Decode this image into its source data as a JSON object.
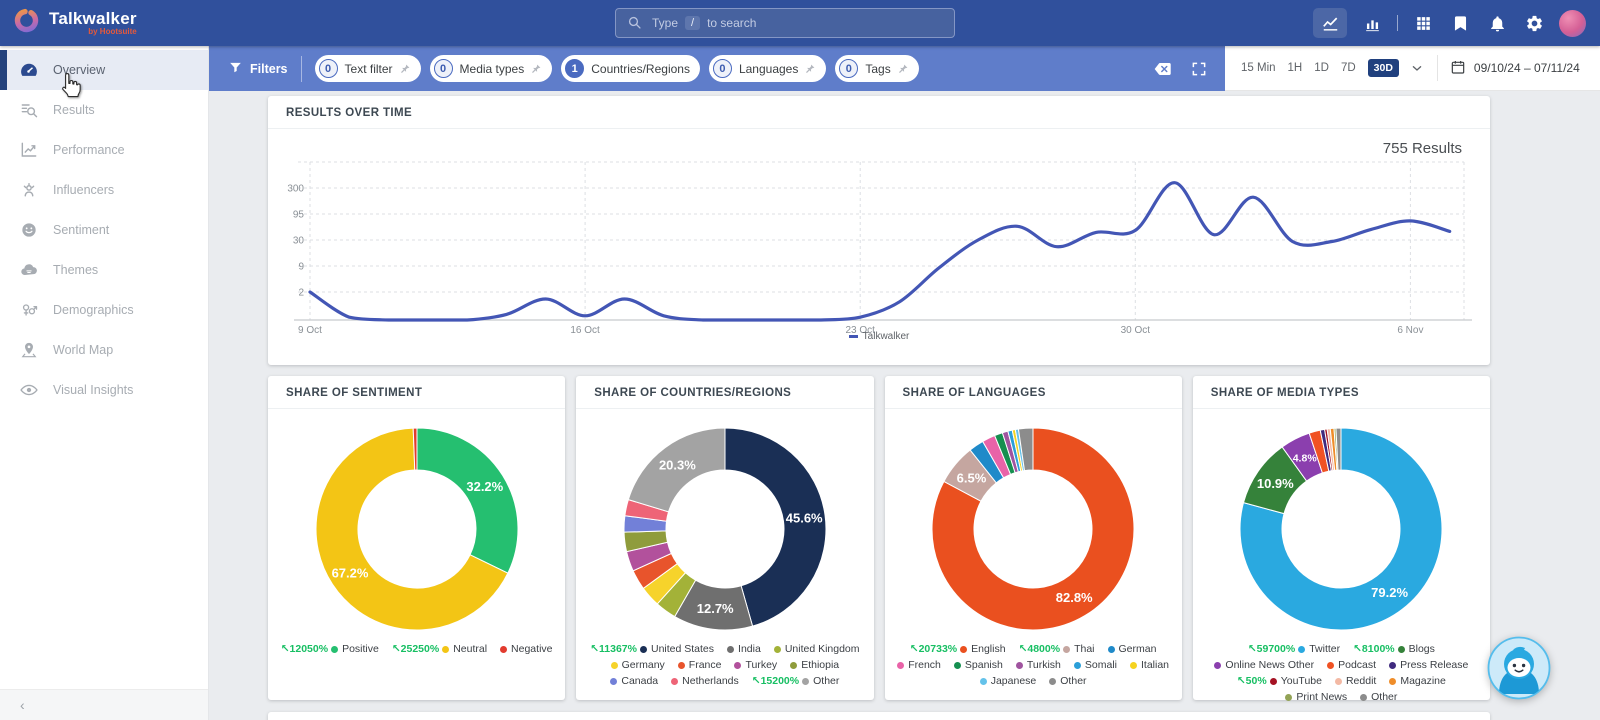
{
  "ui": {
    "trend_arrow": "↖",
    "collapse_chevron": "‹"
  },
  "navbar": {
    "brand": "Talkwalker",
    "byline": "by Hootsuite",
    "search": {
      "prefix": "Type",
      "key": "/",
      "suffix": "to search"
    },
    "right_icons": [
      "line-chart",
      "bar-chart",
      "apps-grid",
      "bookmark",
      "notifications-bell",
      "settings-gear",
      "user-avatar"
    ],
    "active_icon": "line-chart"
  },
  "sidebar": {
    "items": [
      {
        "label": "Overview",
        "icon": "gauge",
        "active": true
      },
      {
        "label": "Results",
        "icon": "results"
      },
      {
        "label": "Performance",
        "icon": "performance"
      },
      {
        "label": "Influencers",
        "icon": "influencers"
      },
      {
        "label": "Sentiment",
        "icon": "sentiment"
      },
      {
        "label": "Themes",
        "icon": "themes"
      },
      {
        "label": "Demographics",
        "icon": "demographics"
      },
      {
        "label": "World Map",
        "icon": "world-map"
      },
      {
        "label": "Visual Insights",
        "icon": "visual-insights"
      }
    ]
  },
  "filterbar": {
    "filters_label": "Filters",
    "pills": [
      {
        "count": "0",
        "label": "Text filter",
        "pinned": true,
        "active": false
      },
      {
        "count": "0",
        "label": "Media types",
        "pinned": true,
        "active": false
      },
      {
        "count": "1",
        "label": "Countries/Regions",
        "pinned": false,
        "active": true
      },
      {
        "count": "0",
        "label": "Languages",
        "pinned": true,
        "active": false
      },
      {
        "count": "0",
        "label": "Tags",
        "pinned": true,
        "active": false
      }
    ],
    "time_ranges": [
      "15 Min",
      "1H",
      "1D",
      "7D",
      "30D"
    ],
    "active_range": "30D",
    "date_range": "09/10/24 – 07/11/24"
  },
  "chart_data": [
    {
      "type": "line",
      "title": "RESULTS OVER TIME",
      "annotation": "755 Results",
      "yscale": "log",
      "yticks": [
        2,
        9,
        30,
        95,
        300
      ],
      "xticks": [
        "9 Oct",
        "16 Oct",
        "23 Oct",
        "30 Oct",
        "6 Nov"
      ],
      "xtick_day_index": [
        0,
        7,
        14,
        21,
        28
      ],
      "x_start": "9 Oct",
      "x_step_days": 1,
      "grid": "dashed",
      "legend_position": "bottom",
      "series": [
        {
          "name": "Talkwalker",
          "color": "#4356b5",
          "values": [
            2,
            0.2,
            0,
            0,
            0,
            0.4,
            1.5,
            0.3,
            1.5,
            0.3,
            0,
            0,
            0,
            0,
            0.2,
            1.3,
            8,
            30,
            55,
            22,
            42,
            46,
            380,
            38,
            200,
            28,
            28,
            48,
            70,
            44
          ]
        }
      ]
    },
    {
      "type": "pie",
      "title": "SHARE OF SENTIMENT",
      "slices": [
        {
          "label": "Positive",
          "value": 32.2,
          "display": "32.2%",
          "color": "#25bf70",
          "trend": "12050%"
        },
        {
          "label": "Neutral",
          "value": 67.2,
          "display": "67.2%",
          "color": "#f3c515",
          "trend": "25250%"
        },
        {
          "label": "Negative",
          "value": 0.6,
          "display": null,
          "color": "#e23b2e",
          "trend": null
        }
      ]
    },
    {
      "type": "pie",
      "title": "SHARE OF COUNTRIES/REGIONS",
      "slices": [
        {
          "label": "United States",
          "value": 45.6,
          "display": "45.6%",
          "color": "#1a2f55",
          "trend": "11367%"
        },
        {
          "label": "India",
          "value": 12.7,
          "display": "12.7%",
          "color": "#6f6f6f",
          "trend": null
        },
        {
          "label": "United Kingdom",
          "value": 3.4,
          "display": null,
          "color": "#a3b238",
          "trend": null
        },
        {
          "label": "Germany",
          "value": 3.3,
          "display": null,
          "color": "#f6d32b",
          "trend": null
        },
        {
          "label": "France",
          "value": 3.2,
          "display": null,
          "color": "#e8542c",
          "trend": null
        },
        {
          "label": "Turkey",
          "value": 3.2,
          "display": null,
          "color": "#b2519c",
          "trend": null
        },
        {
          "label": "Ethiopia",
          "value": 3.1,
          "display": null,
          "color": "#8f9c3c",
          "trend": null
        },
        {
          "label": "Canada",
          "value": 2.6,
          "display": null,
          "color": "#7280d8",
          "trend": null
        },
        {
          "label": "Netherlands",
          "value": 2.6,
          "display": null,
          "color": "#ee6477",
          "trend": null
        },
        {
          "label": "Other",
          "value": 20.3,
          "display": "20.3%",
          "color": "#a3a3a3",
          "trend": "15200%"
        }
      ]
    },
    {
      "type": "pie",
      "title": "SHARE OF LANGUAGES",
      "slices": [
        {
          "label": "English",
          "value": 82.8,
          "display": "82.8%",
          "color": "#ea501f",
          "trend": "20733%"
        },
        {
          "label": "Thai",
          "value": 6.5,
          "display": "6.5%",
          "color": "#c5a6a0",
          "trend": "4800%"
        },
        {
          "label": "German",
          "value": 2.4,
          "display": null,
          "color": "#1f8ac9",
          "trend": null
        },
        {
          "label": "French",
          "value": 2.1,
          "display": null,
          "color": "#e963a8",
          "trend": null
        },
        {
          "label": "Spanish",
          "value": 1.3,
          "display": null,
          "color": "#168f50",
          "trend": null
        },
        {
          "label": "Turkish",
          "value": 0.9,
          "display": null,
          "color": "#a0549f",
          "trend": null
        },
        {
          "label": "Somali",
          "value": 0.7,
          "display": null,
          "color": "#2b9fd8",
          "trend": null
        },
        {
          "label": "Italian",
          "value": 0.5,
          "display": null,
          "color": "#f5d321",
          "trend": null
        },
        {
          "label": "Japanese",
          "value": 0.5,
          "display": null,
          "color": "#64c2ea",
          "trend": null
        },
        {
          "label": "Other",
          "value": 2.3,
          "display": null,
          "color": "#8c8c8c",
          "trend": null
        }
      ]
    },
    {
      "type": "pie",
      "title": "SHARE OF MEDIA TYPES",
      "slices": [
        {
          "label": "Twitter",
          "value": 79.2,
          "display": "79.2%",
          "color": "#2aa9e0",
          "trend": "59700%"
        },
        {
          "label": "Blogs",
          "value": 10.9,
          "display": "10.9%",
          "color": "#35823a",
          "trend": "8100%"
        },
        {
          "label": "Online News Other",
          "value": 4.8,
          "display": "4.8%",
          "color": "#8b3fae",
          "trend": null
        },
        {
          "label": "Podcast",
          "value": 1.8,
          "display": null,
          "color": "#f05223",
          "trend": null
        },
        {
          "label": "Press Release",
          "value": 0.7,
          "display": null,
          "color": "#3f2a7e",
          "trend": null
        },
        {
          "label": "YouTube",
          "value": 0.4,
          "display": null,
          "color": "#a51224",
          "trend": "50%"
        },
        {
          "label": "Reddit",
          "value": 0.5,
          "display": null,
          "color": "#f3b9a4",
          "trend": null
        },
        {
          "label": "Magazine",
          "value": 0.6,
          "display": null,
          "color": "#ef8d2a",
          "trend": null
        },
        {
          "label": "Print News",
          "value": 0.3,
          "display": null,
          "color": "#93a356",
          "trend": null
        },
        {
          "label": "Other",
          "value": 0.8,
          "display": null,
          "color": "#8c8c8c",
          "trend": null
        }
      ]
    }
  ]
}
